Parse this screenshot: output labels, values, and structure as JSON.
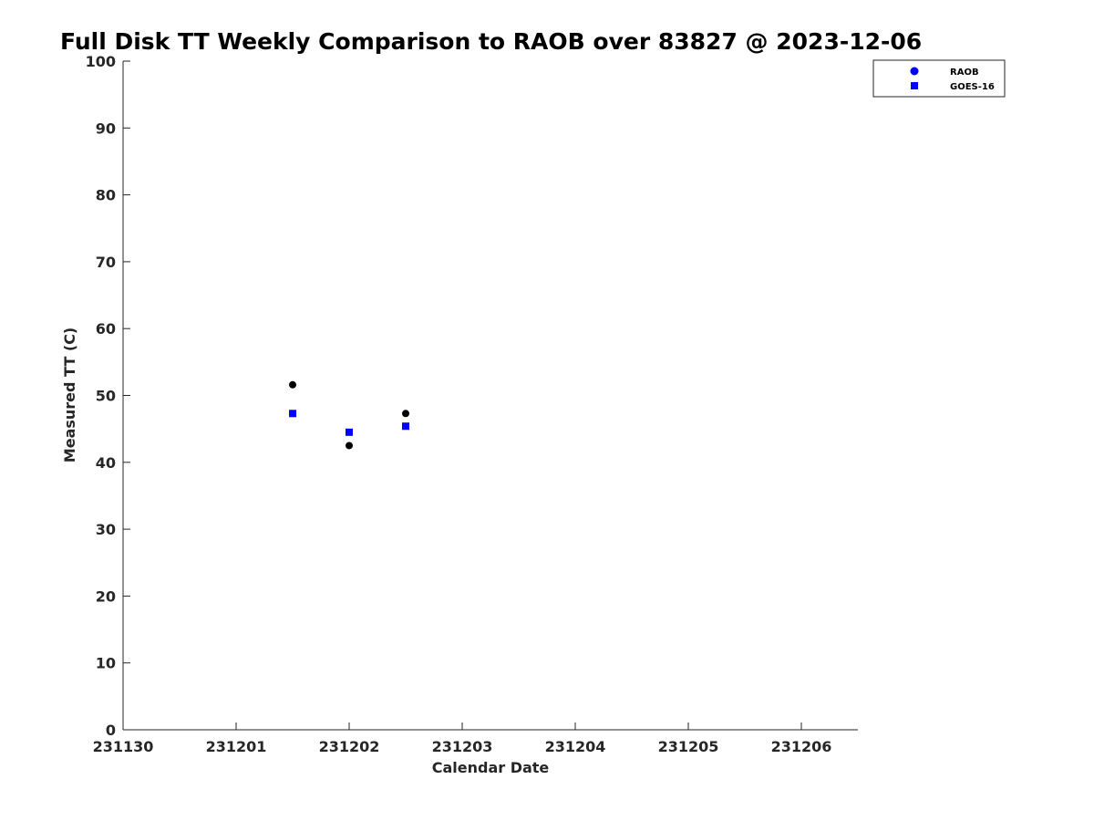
{
  "chart_data": {
    "type": "scatter",
    "title": "Full Disk TT Weekly Comparison to RAOB over 83827 @ 2023-12-06",
    "xlabel": "Calendar Date",
    "ylabel": "Measured TT (C)",
    "xlim": [
      0,
      6.5
    ],
    "ylim": [
      0,
      100
    ],
    "x_ticks": [
      0,
      1,
      2,
      3,
      4,
      5,
      6
    ],
    "x_tick_labels": [
      "231130",
      "231201",
      "231202",
      "231203",
      "231204",
      "231205",
      "231206"
    ],
    "y_ticks": [
      0,
      10,
      20,
      30,
      40,
      50,
      60,
      70,
      80,
      90,
      100
    ],
    "y_tick_labels": [
      "0",
      "10",
      "20",
      "30",
      "40",
      "50",
      "60",
      "70",
      "80",
      "90",
      "100"
    ],
    "grid": false,
    "legend_position": "top-right",
    "series": [
      {
        "name": "RAOB",
        "marker": "circle",
        "color": "#000000",
        "legend_color": "#0000ff",
        "points": [
          {
            "x": 1.5,
            "y": 51.6
          },
          {
            "x": 2.0,
            "y": 42.5
          },
          {
            "x": 2.5,
            "y": 47.3
          }
        ]
      },
      {
        "name": "GOES-16",
        "marker": "square",
        "color": "#0000ff",
        "legend_color": "#0000ff",
        "points": [
          {
            "x": 1.5,
            "y": 47.3
          },
          {
            "x": 2.0,
            "y": 44.5
          },
          {
            "x": 2.5,
            "y": 45.4
          }
        ]
      }
    ]
  }
}
